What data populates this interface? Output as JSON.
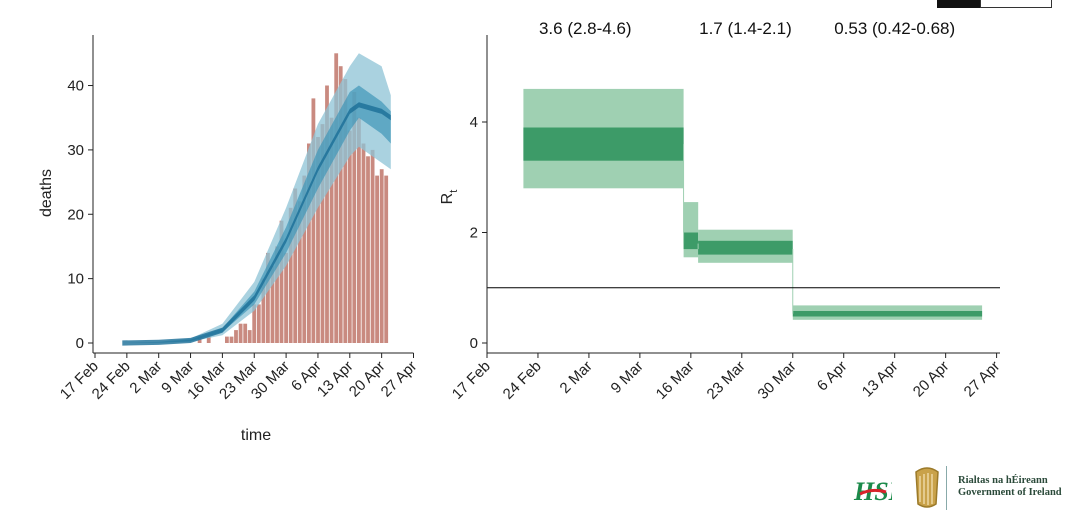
{
  "chart_data": [
    {
      "type": "bar",
      "xlabel": "time",
      "ylabel": "deaths",
      "ylim": [
        0,
        48
      ],
      "yticks": [
        0,
        10,
        20,
        30,
        40
      ],
      "xtick_labels": [
        "17 Feb",
        "24 Feb",
        "2 Mar",
        "9 Mar",
        "16 Mar",
        "23 Mar",
        "30 Mar",
        "6 Apr",
        "13 Apr",
        "20 Apr",
        "27 Apr"
      ],
      "xtick_days": [
        0,
        7,
        14,
        21,
        28,
        35,
        42,
        49,
        56,
        63,
        70
      ],
      "bar_start_date": "2020-03-11",
      "values": [
        1,
        0,
        1,
        0,
        0,
        0,
        1,
        1,
        2,
        3,
        3,
        2,
        6,
        6,
        10,
        14,
        12,
        15,
        19,
        14,
        21,
        24,
        22,
        26,
        31,
        38,
        32,
        34,
        40,
        35,
        45,
        43,
        41,
        33,
        39,
        35,
        31,
        29,
        30,
        26,
        27,
        26
      ],
      "model_band": {
        "name": "model fit",
        "x_days": [
          6,
          14,
          21,
          28,
          35,
          42,
          49,
          56,
          58,
          63,
          65
        ],
        "median": [
          0,
          0.1,
          0.4,
          2,
          7,
          16,
          27,
          36,
          37,
          36,
          35
        ],
        "inner_lo": [
          0,
          0.1,
          0.3,
          1.7,
          6,
          14,
          24,
          33,
          35,
          32.5,
          31
        ],
        "inner_hi": [
          0,
          0.1,
          0.5,
          2.3,
          8,
          18,
          30,
          39,
          40,
          37.5,
          36
        ],
        "outer_lo": [
          0,
          0,
          0.2,
          1.2,
          5,
          12,
          21,
          29,
          30.5,
          28,
          27
        ],
        "outer_hi": [
          0,
          0.2,
          0.7,
          3,
          9.5,
          21,
          34,
          43,
          45,
          43,
          38.5
        ]
      },
      "colors": {
        "bars": "#c0756a",
        "band_outer": "#8ec3d6",
        "band_inner": "#3f95b8",
        "band_mid": "#1a6e97"
      }
    },
    {
      "type": "step",
      "xlabel": "",
      "ylabel": "Rt",
      "ylim": [
        -0.3,
        5.5
      ],
      "yticks": [
        0,
        2,
        4
      ],
      "xtick_labels": [
        "17 Feb",
        "24 Feb",
        "2 Mar",
        "9 Mar",
        "16 Mar",
        "23 Mar",
        "30 Mar",
        "6 Apr",
        "13 Apr",
        "20 Apr",
        "27 Apr"
      ],
      "xtick_days": [
        0,
        7,
        14,
        21,
        28,
        35,
        42,
        49,
        56,
        63,
        70
      ],
      "reference_line": 1,
      "segments": [
        {
          "x_start": 5,
          "x_end": 27,
          "median": 3.6,
          "inner_lo": 3.3,
          "inner_hi": 3.9,
          "outer_lo": 2.8,
          "outer_hi": 4.6
        },
        {
          "x_start": 27,
          "x_end": 29,
          "median": 1.8,
          "inner_lo": 1.7,
          "inner_hi": 2.0,
          "outer_lo": 1.55,
          "outer_hi": 2.55
        },
        {
          "x_start": 29,
          "x_end": 42,
          "median": 1.7,
          "inner_lo": 1.6,
          "inner_hi": 1.85,
          "outer_lo": 1.45,
          "outer_hi": 2.05
        },
        {
          "x_start": 42,
          "x_end": 68,
          "median": 0.53,
          "inner_lo": 0.48,
          "inner_hi": 0.58,
          "outer_lo": 0.42,
          "outer_hi": 0.68
        }
      ],
      "annotations": [
        "3.6 (2.8-4.6)",
        "1.7 (1.4-2.1)",
        "0.53 (0.42-0.68)"
      ],
      "annotation_days": [
        13.5,
        35.5,
        56
      ],
      "colors": {
        "outer": "#9fd0b2",
        "inner": "#3d9b68",
        "reference": "#000000"
      }
    }
  ],
  "logos": {
    "hse_text": "HSE",
    "gov_line1": "Rialtas na hÉireann",
    "gov_line2": "Government of Ireland",
    "harp_icon": "harp-icon"
  }
}
